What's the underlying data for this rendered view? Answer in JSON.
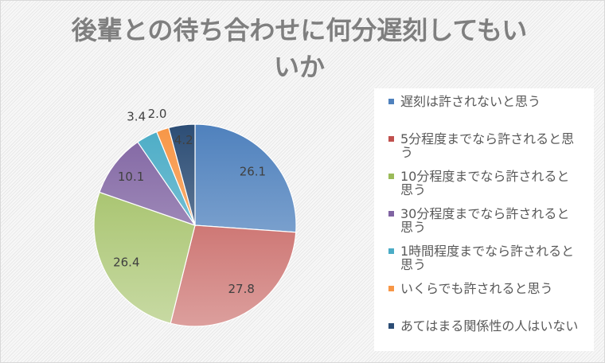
{
  "chart_data": {
    "type": "pie",
    "title": "後輩との待ち合わせに何分遅刻してもいいか",
    "categories": [
      "遅刻は許されないと思う",
      "5分程度までなら許されると思う",
      "10分程度までなら許されると思う",
      "30分程度までなら許されると思う",
      "1時間程度までなら許されると思う",
      "いくらでも許されると思う",
      "あてはまる関係性の人はいない"
    ],
    "values": [
      26.1,
      27.8,
      26.4,
      10.1,
      3.4,
      2.0,
      4.2
    ],
    "data_labels": [
      "26.1",
      "27.8",
      "26.4",
      "10.1",
      "3.4",
      "2.0",
      "4.2"
    ],
    "colors": [
      "#4F81BD",
      "#C0504D",
      "#9BBB59",
      "#8064A2",
      "#4BACC6",
      "#F79646",
      "#2C4D75"
    ],
    "legend_position": "right"
  }
}
